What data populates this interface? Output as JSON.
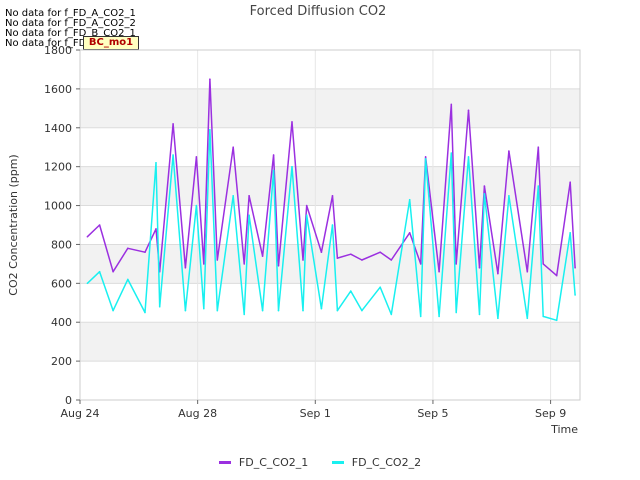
{
  "no_data": [
    "No data for f_FD_A_CO2_1",
    "No data for f_FD_A_CO2_2",
    "No data for f_FD_B_CO2_1",
    "No data for f_FD_B_CO2_2"
  ],
  "badge": "BC_mo1",
  "chart_data": {
    "type": "line",
    "title": "Forced Diffusion CO2",
    "xlabel": "Time",
    "ylabel": "CO2 Concentration (ppm)",
    "ylim": [
      0,
      1800
    ],
    "yticks": [
      0,
      200,
      400,
      600,
      800,
      1000,
      1200,
      1400,
      1600,
      1800
    ],
    "xlim": [
      "2023-08-24",
      "2023-09-10"
    ],
    "xticks": [
      {
        "date": "2023-08-24",
        "label": "Aug 24"
      },
      {
        "date": "2023-08-28",
        "label": "Aug 28"
      },
      {
        "date": "2023-09-01",
        "label": "Sep 1"
      },
      {
        "date": "2023-09-05",
        "label": "Sep 5"
      },
      {
        "date": "2023-09-09",
        "label": "Sep 9"
      }
    ],
    "grid": true,
    "legend_position": "bottom",
    "series": [
      {
        "name": "FD_C_CO2_1",
        "color": "#9b30e0",
        "x": [
          "2023-08-24T06:00",
          "2023-08-24T16:00",
          "2023-08-25T03:00",
          "2023-08-25T15:00",
          "2023-08-26T05:00",
          "2023-08-26T14:00",
          "2023-08-26T17:00",
          "2023-08-27T04:00",
          "2023-08-27T14:00",
          "2023-08-27T23:00",
          "2023-08-28T05:00",
          "2023-08-28T10:00",
          "2023-08-28T16:00",
          "2023-08-29T05:00",
          "2023-08-29T14:00",
          "2023-08-29T18:00",
          "2023-08-30T05:00",
          "2023-08-30T14:00",
          "2023-08-30T18:00",
          "2023-08-31T05:00",
          "2023-08-31T14:00",
          "2023-08-31T17:00",
          "2023-09-01T05:00",
          "2023-09-01T14:00",
          "2023-09-01T18:00",
          "2023-09-02T05:00",
          "2023-09-02T14:00",
          "2023-09-03T05:00",
          "2023-09-03T14:00",
          "2023-09-04T05:00",
          "2023-09-04T14:00",
          "2023-09-04T18:00",
          "2023-09-05T05:00",
          "2023-09-05T15:00",
          "2023-09-05T19:00",
          "2023-09-06T05:00",
          "2023-09-06T14:00",
          "2023-09-06T18:00",
          "2023-09-07T05:00",
          "2023-09-07T14:00",
          "2023-09-08T05:00",
          "2023-09-08T14:00",
          "2023-09-08T18:00",
          "2023-09-09T05:00",
          "2023-09-09T16:00",
          "2023-09-09T20:00"
        ],
        "values": [
          840,
          900,
          660,
          780,
          760,
          880,
          660,
          1420,
          680,
          1250,
          700,
          1650,
          720,
          1300,
          700,
          1050,
          740,
          1260,
          690,
          1430,
          720,
          1000,
          760,
          1050,
          730,
          750,
          720,
          760,
          720,
          860,
          700,
          1250,
          660,
          1520,
          700,
          1490,
          680,
          1100,
          650,
          1280,
          660,
          1300,
          700,
          640,
          1120,
          680
        ]
      },
      {
        "name": "FD_C_CO2_2",
        "color": "#19f0f0",
        "x": [
          "2023-08-24T06:00",
          "2023-08-24T16:00",
          "2023-08-25T03:00",
          "2023-08-25T15:00",
          "2023-08-26T05:00",
          "2023-08-26T14:00",
          "2023-08-26T17:00",
          "2023-08-27T04:00",
          "2023-08-27T14:00",
          "2023-08-27T23:00",
          "2023-08-28T05:00",
          "2023-08-28T10:00",
          "2023-08-28T16:00",
          "2023-08-29T05:00",
          "2023-08-29T14:00",
          "2023-08-29T18:00",
          "2023-08-30T05:00",
          "2023-08-30T14:00",
          "2023-08-30T18:00",
          "2023-08-31T05:00",
          "2023-08-31T14:00",
          "2023-08-31T17:00",
          "2023-09-01T05:00",
          "2023-09-01T14:00",
          "2023-09-01T18:00",
          "2023-09-02T05:00",
          "2023-09-02T14:00",
          "2023-09-03T05:00",
          "2023-09-03T14:00",
          "2023-09-04T05:00",
          "2023-09-04T14:00",
          "2023-09-04T18:00",
          "2023-09-05T05:00",
          "2023-09-05T15:00",
          "2023-09-05T19:00",
          "2023-09-06T05:00",
          "2023-09-06T14:00",
          "2023-09-06T18:00",
          "2023-09-07T05:00",
          "2023-09-07T14:00",
          "2023-09-08T05:00",
          "2023-09-08T14:00",
          "2023-09-08T18:00",
          "2023-09-09T05:00",
          "2023-09-09T16:00",
          "2023-09-09T20:00"
        ],
        "values": [
          600,
          660,
          460,
          620,
          450,
          1220,
          480,
          1260,
          460,
          1000,
          470,
          1390,
          460,
          1050,
          440,
          950,
          460,
          1180,
          460,
          1200,
          460,
          950,
          470,
          900,
          460,
          560,
          460,
          580,
          440,
          1030,
          430,
          1240,
          430,
          1270,
          450,
          1250,
          440,
          1060,
          420,
          1050,
          420,
          1100,
          430,
          410,
          860,
          540
        ]
      }
    ]
  }
}
